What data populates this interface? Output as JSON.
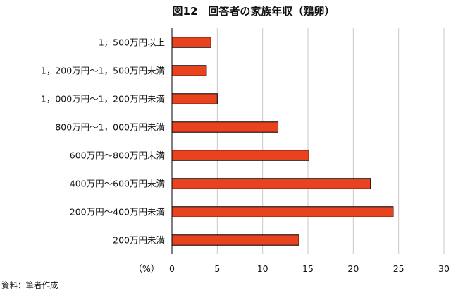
{
  "chart_data": {
    "type": "bar",
    "orientation": "horizontal",
    "title": "図12　回答者の家族年収（鶏卵）",
    "categories": [
      "1，500万円以上",
      "1，200万円～1，500万円未満",
      "1，000万円～1，200万円未満",
      "800万円～1，000万円未満",
      "600万円～800万円未満",
      "400万円～600万円未満",
      "200万円～400万円未満",
      "200万円未満"
    ],
    "values": [
      4.3,
      3.8,
      5.0,
      11.7,
      15.1,
      21.9,
      24.4,
      14.0
    ],
    "xlabel": "（%）",
    "xlim": [
      0,
      30
    ],
    "xticks": [
      "0",
      "5",
      "10",
      "15",
      "20",
      "25",
      "30"
    ],
    "grid": true,
    "colors": {
      "bar_fill": "#e8421f",
      "bar_stroke": "#000000",
      "grid": "#c8c8c8",
      "axis": "#000000"
    }
  },
  "source": "資料：筆者作成"
}
